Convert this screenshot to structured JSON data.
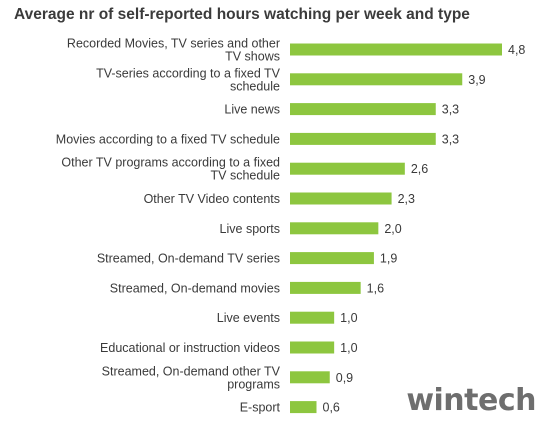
{
  "chart_data": {
    "type": "bar",
    "orientation": "horizontal",
    "title": "Average nr of self-reported hours watching per week and type",
    "xlabel": "",
    "ylabel": "",
    "xlim": [
      0,
      4.8
    ],
    "grid": false,
    "legend": "none",
    "bar_color": "#8dc63f",
    "categories": [
      [
        "Recorded Movies, TV series and other",
        "TV shows"
      ],
      [
        "TV-series according to a fixed TV",
        "schedule"
      ],
      [
        "Live news"
      ],
      [
        "Movies according to a fixed TV schedule"
      ],
      [
        "Other TV programs according to a fixed",
        "TV schedule"
      ],
      [
        "Other TV Video contents"
      ],
      [
        "Live sports"
      ],
      [
        "Streamed, On-demand TV series"
      ],
      [
        "Streamed, On-demand movies"
      ],
      [
        "Live events"
      ],
      [
        "Educational or instruction videos"
      ],
      [
        "Streamed, On-demand other TV",
        "programs"
      ],
      [
        "E-sport"
      ]
    ],
    "values": [
      4.8,
      3.9,
      3.3,
      3.3,
      2.6,
      2.3,
      2.0,
      1.9,
      1.6,
      1.0,
      1.0,
      0.9,
      0.6
    ],
    "value_labels": [
      "4,8",
      "3,9",
      "3,3",
      "3,3",
      "2,6",
      "2,3",
      "2,0",
      "1,9",
      "1,6",
      "1,0",
      "1,0",
      "0,9",
      "0,6"
    ]
  },
  "watermark": "wintech"
}
